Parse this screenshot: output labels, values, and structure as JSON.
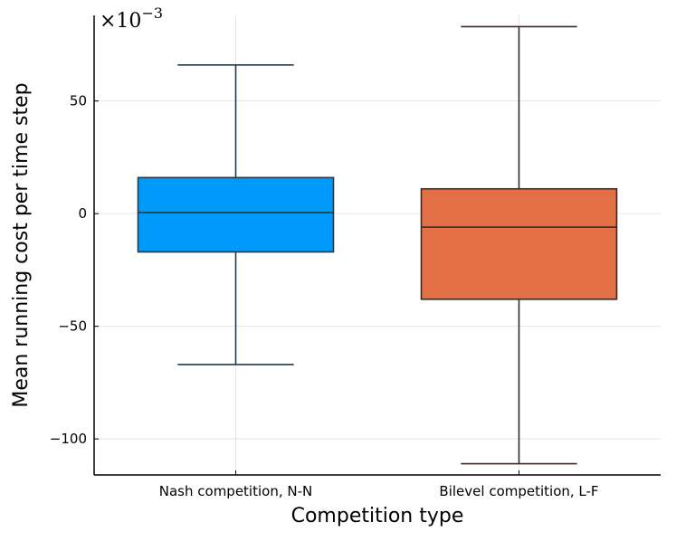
{
  "chart_data": {
    "type": "box",
    "title": "",
    "xlabel": "Competition type",
    "ylabel": "Mean running cost per time step",
    "y_scale_label": "×10",
    "y_scale_exponent": "−3",
    "ylim": [
      -116,
      88
    ],
    "yticks": [
      {
        "value": -100,
        "label": "−100"
      },
      {
        "value": -50,
        "label": "−50"
      },
      {
        "value": 0,
        "label": "0"
      },
      {
        "value": 50,
        "label": "50"
      }
    ],
    "grid": true,
    "categories": [
      "Nash competition, N-N",
      "Bilevel competition, L-F"
    ],
    "boxes": [
      {
        "category": "Nash competition, N-N",
        "whisker_low": -67,
        "q1": -17,
        "median": 0.5,
        "q3": 16,
        "whisker_high": 66,
        "color": "#009AFA"
      },
      {
        "category": "Bilevel competition, L-F",
        "whisker_low": -111,
        "q1": -38,
        "median": -6,
        "q3": 11,
        "whisker_high": 83,
        "color": "#E26F46"
      }
    ]
  }
}
